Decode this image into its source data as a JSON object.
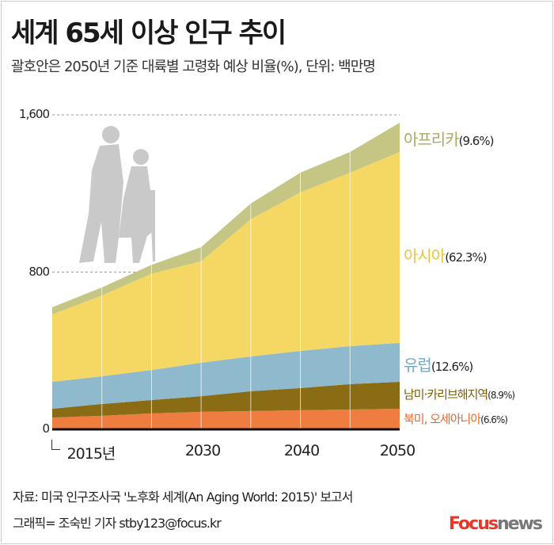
{
  "title": "세계 65세 이상 인구 추이",
  "subtitle": "괄호안은 2050년 기준 대륙별 고령화 예상 비율(%), 단위: 백만명",
  "chart_data": {
    "type": "area",
    "stacked": true,
    "title": "세계 65세 이상 인구 추이",
    "unit": "단위: 백만명",
    "x": [
      2015,
      2020,
      2025,
      2030,
      2035,
      2040,
      2045,
      2050
    ],
    "x_tick_labels": [
      "2015년",
      "2030",
      "2040",
      "2050"
    ],
    "x_tick_values": [
      2015,
      2030,
      2040,
      2050
    ],
    "y_tick_labels": [
      "0",
      "800",
      "1,600"
    ],
    "y_tick_values": [
      0,
      800,
      1600
    ],
    "ylim": [
      0,
      1600
    ],
    "grid": "dashed horizontal at 800 and 1,600; white vertical every 5 years",
    "legend": "inline labels right of series",
    "series": [
      {
        "name": "북미, 오세아니아",
        "share_2050": "(6.6%)",
        "color": "#ef7d3f",
        "label_color": "#e8672a",
        "values": [
          60,
          69,
          81,
          89,
          93,
          97,
          101,
          105
        ]
      },
      {
        "name": "남미·카리브해지역",
        "share_2050": "(8.9%)",
        "color": "#8a6c15",
        "label_color": "#7a5d0e",
        "values": [
          45,
          60,
          68,
          80,
          101,
          113,
          129,
          137
        ]
      },
      {
        "name": "유럽",
        "share_2050": "(12.6%)",
        "color": "#8fbacd",
        "label_color": "#76a9c4",
        "values": [
          137,
          141,
          153,
          170,
          177,
          189,
          193,
          198
        ]
      },
      {
        "name": "아시아",
        "share_2050": "(62.3%)",
        "color": "#f5d764",
        "label_color": "#e9c43e",
        "values": [
          343,
          411,
          490,
          516,
          698,
          807,
          883,
          971
        ]
      },
      {
        "name": "아프리카",
        "share_2050": "(9.6%)",
        "color": "#c5c684",
        "label_color": "#a9aa63",
        "values": [
          36,
          41,
          45,
          72,
          80,
          100,
          105,
          149
        ]
      }
    ]
  },
  "footer": {
    "source": "자료: 미국 인구조사국 '노후화 세계(An Aging World: 2015)' 보고서",
    "credit": "그래픽= 조숙빈 기자 stby123@focus.kr"
  },
  "logo": {
    "text": "Focusnews",
    "part1": "Focus",
    "part2": "news",
    "color1": "#e8382a",
    "color2": "#777777"
  }
}
